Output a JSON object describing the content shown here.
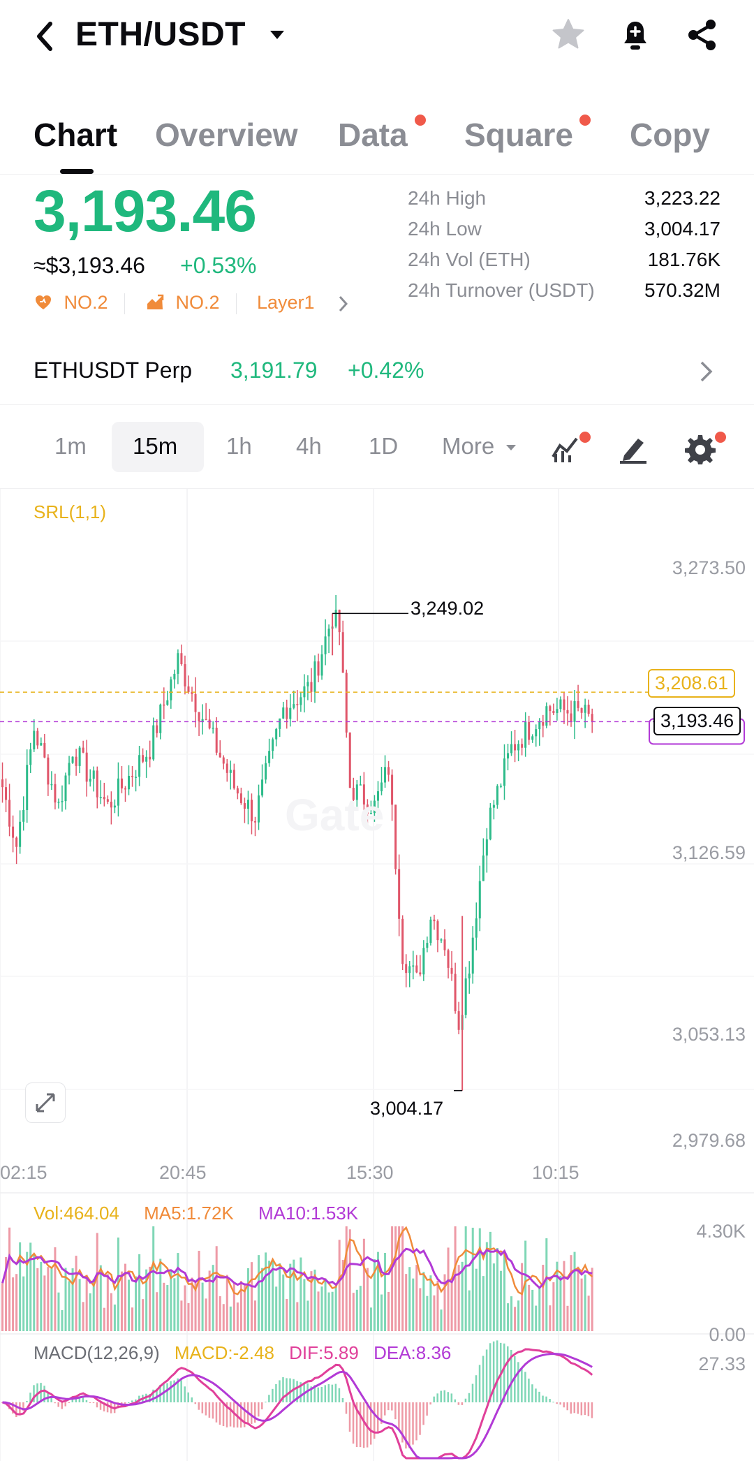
{
  "header": {
    "title": "ETH/USDT"
  },
  "tabs": [
    {
      "label": "Chart",
      "active": true
    },
    {
      "label": "Overview"
    },
    {
      "label": "Data",
      "dot": true
    },
    {
      "label": "Square",
      "dot": true
    },
    {
      "label": "Copy"
    }
  ],
  "ticker": {
    "last_price": "3,193.46",
    "usd_equiv": "≈$3,193.46",
    "change_pct": "+0.53%",
    "rank1": "NO.2",
    "rank2": "NO.2",
    "category": "Layer1",
    "stats": [
      {
        "label": "24h High",
        "value": "3,223.22"
      },
      {
        "label": "24h Low",
        "value": "3,004.17"
      },
      {
        "label": "24h Vol (ETH)",
        "value": "181.76K"
      },
      {
        "label": "24h Turnover (USDT)",
        "value": "570.32M"
      }
    ]
  },
  "perp": {
    "name": "ETHUSDT Perp",
    "price": "3,191.79",
    "change_pct": "+0.42%"
  },
  "intervals": {
    "items": [
      "1m",
      "15m",
      "1h",
      "4h",
      "1D",
      "More"
    ],
    "selected": "15m"
  },
  "chart": {
    "indicator_label": "SRL(1,1)",
    "watermark": "Gate",
    "price_axis": [
      "3,273.50",
      "3,126.59",
      "3,053.13",
      "2,979.68"
    ],
    "time_axis": [
      "02:15",
      "20:45",
      "15:30",
      "10:15"
    ],
    "high_marker": "3,249.02",
    "low_marker": "3,004.17",
    "srl_level": "3,208.61",
    "last_price_tag": "3,193.46",
    "volume": {
      "vol": "Vol:464.04",
      "ma5": "MA5:1.72K",
      "ma10": "MA10:1.53K",
      "axis_top": "4.30K",
      "axis_bottom": "0.00"
    },
    "macd": {
      "label": "MACD(12,26,9)",
      "macd": "MACD:-2.48",
      "dif": "DIF:5.89",
      "dea": "DEA:8.36",
      "axis_top": "27.33"
    }
  },
  "colors": {
    "up": "#2dbb8a",
    "down": "#e0566a",
    "accent": "#1fb87d",
    "srl": "#e8b21a",
    "purple": "#b23ad6",
    "orange": "#f08b3a"
  },
  "chart_data": {
    "type": "candlestick",
    "title": "",
    "interval": "15m",
    "ylim": [
      2979.68,
      3273.5
    ],
    "y_ticks": [
      3273.5,
      3126.59,
      3053.13,
      2979.68
    ],
    "x_ticks": [
      "02:15",
      "20:45",
      "15:30",
      "10:15"
    ],
    "close_path": [
      {
        "x": 0,
        "y": 3160
      },
      {
        "x": 4,
        "y": 3130
      },
      {
        "x": 9,
        "y": 3190
      },
      {
        "x": 16,
        "y": 3150
      },
      {
        "x": 20,
        "y": 3180
      },
      {
        "x": 30,
        "y": 3150
      },
      {
        "x": 42,
        "y": 3180
      },
      {
        "x": 50,
        "y": 3225
      },
      {
        "x": 56,
        "y": 3200
      },
      {
        "x": 66,
        "y": 3160
      },
      {
        "x": 72,
        "y": 3145
      },
      {
        "x": 80,
        "y": 3200
      },
      {
        "x": 88,
        "y": 3212
      },
      {
        "x": 94,
        "y": 3248
      },
      {
        "x": 96,
        "y": 3240
      },
      {
        "x": 99,
        "y": 3160
      },
      {
        "x": 106,
        "y": 3150
      },
      {
        "x": 110,
        "y": 3170
      },
      {
        "x": 114,
        "y": 3075
      },
      {
        "x": 118,
        "y": 3060
      },
      {
        "x": 122,
        "y": 3095
      },
      {
        "x": 126,
        "y": 3080
      },
      {
        "x": 130,
        "y": 3040
      },
      {
        "x": 133,
        "y": 3070
      },
      {
        "x": 138,
        "y": 3140
      },
      {
        "x": 145,
        "y": 3180
      },
      {
        "x": 155,
        "y": 3200
      },
      {
        "x": 165,
        "y": 3198
      },
      {
        "x": 168,
        "y": 3193.46
      }
    ],
    "annotations": [
      {
        "label": "3,249.02",
        "price": 3249.02,
        "kind": "high"
      },
      {
        "label": "3,004.17",
        "price": 3004.17,
        "kind": "low"
      }
    ],
    "levels": [
      {
        "name": "SRL",
        "price": 3208.61
      },
      {
        "name": "last",
        "price": 3193.46
      }
    ]
  }
}
